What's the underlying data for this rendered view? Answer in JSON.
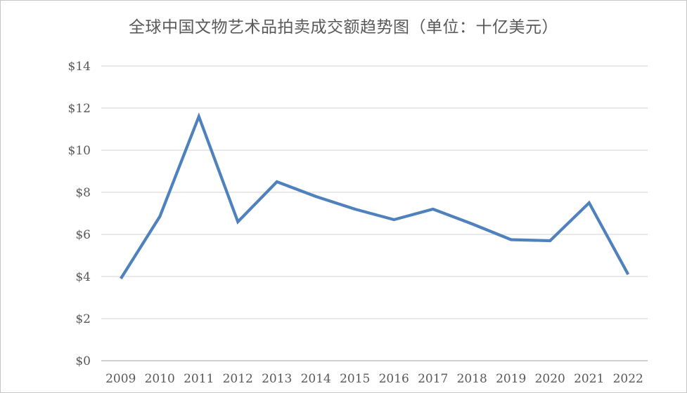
{
  "frame": {
    "background_color": "#ffffff",
    "border_color": "#c6c6c6"
  },
  "chart_data": {
    "type": "line",
    "title": "全球中国文物艺术品拍卖成交额趋势图（单位：十亿美元）",
    "categories": [
      "2009",
      "2010",
      "2011",
      "2012",
      "2013",
      "2014",
      "2015",
      "2016",
      "2017",
      "2018",
      "2019",
      "2020",
      "2021",
      "2022"
    ],
    "values": [
      3.9,
      6.85,
      11.6,
      6.6,
      8.5,
      7.8,
      7.2,
      6.7,
      7.2,
      6.5,
      5.75,
      5.7,
      7.5,
      4.1
    ],
    "xlabel": "",
    "ylabel": "",
    "ylim": [
      0,
      14
    ],
    "y_tick_step": 2,
    "y_tick_prefix": "$",
    "y_tick_labels": [
      "$0",
      "$2",
      "$4",
      "$6",
      "$8",
      "$10",
      "$12",
      "$14"
    ],
    "grid": "horizontal",
    "legend": "none",
    "colors": {
      "line": "#4f81bd",
      "gridline": "#d9d9d9",
      "axis_line": "#bfbfbf",
      "tick_label": "#595959",
      "title": "#595959"
    }
  }
}
